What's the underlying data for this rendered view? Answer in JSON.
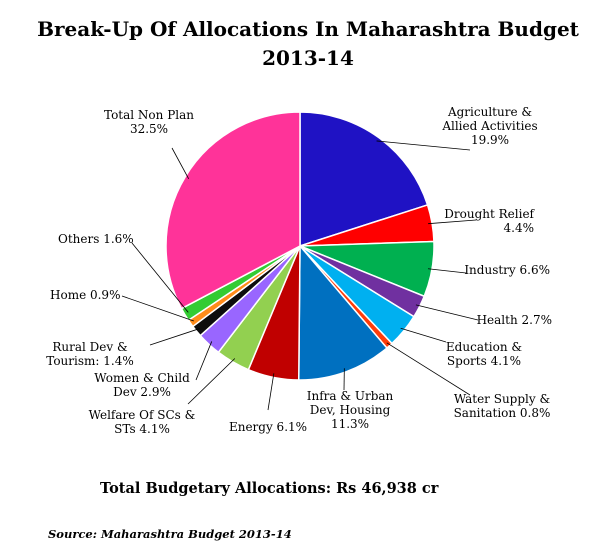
{
  "header": {
    "title_line1": "Break-Up Of Allocations  In Maharashtra Budget",
    "title_line2": "2013-14"
  },
  "footer": {
    "total": "Total Budgetary Allocations: Rs 46,938  cr",
    "source": "Source: Maharashtra Budget 2013-14"
  },
  "chart_data": {
    "type": "pie",
    "title": "Break-Up Of Allocations  In Maharashtra Budget 2013-14",
    "start": "12 o'clock, clockwise",
    "slices": [
      {
        "label": [
          "Agriculture &",
          "Allied Activities",
          "19.9%"
        ],
        "value": 19.9,
        "color": "#1f12c4"
      },
      {
        "label": [
          "Drought Relief",
          "4.4%"
        ],
        "value": 4.4,
        "color": "#ff0000"
      },
      {
        "label": [
          "Industry 6.6%"
        ],
        "value": 6.6,
        "color": "#00b050"
      },
      {
        "label": [
          "Health 2.7%"
        ],
        "value": 2.7,
        "color": "#7030a0"
      },
      {
        "label": [
          "Education &",
          "Sports 4.1%"
        ],
        "value": 4.1,
        "color": "#00b0f0"
      },
      {
        "label": [
          "Water Supply &",
          "Sanitation 0.8%"
        ],
        "value": 0.8,
        "color": "#ff3c0a"
      },
      {
        "label": [
          "Infra & Urban",
          "Dev, Housing",
          "11.3%"
        ],
        "value": 11.3,
        "color": "#0070c0"
      },
      {
        "label": [
          "Energy 6.1%"
        ],
        "value": 6.1,
        "color": "#c00000"
      },
      {
        "label": [
          "Welfare Of SCs &",
          "STs 4.1%"
        ],
        "value": 4.1,
        "color": "#92d050"
      },
      {
        "label": [
          "Women & Child",
          "Dev 2.9%"
        ],
        "value": 2.9,
        "color": "#9966ff"
      },
      {
        "label": [
          "Rural Dev &",
          "Tourism: 1.4%"
        ],
        "value": 1.4,
        "color": "#0d0d0d"
      },
      {
        "label": [
          "Home 0.9%"
        ],
        "value": 0.9,
        "color": "#ff8c1a"
      },
      {
        "label": [
          "Others 1.6%"
        ],
        "value": 1.6,
        "color": "#33cc33"
      },
      {
        "label": [
          "Total Non Plan",
          "32.5%"
        ],
        "value": 32.5,
        "color": "#ff3399"
      }
    ]
  }
}
